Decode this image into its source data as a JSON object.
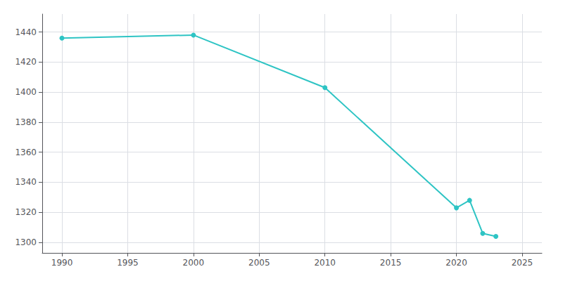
{
  "chart_data": {
    "type": "line",
    "x": [
      1990,
      2000,
      2010,
      2020,
      2021,
      2022,
      2023
    ],
    "values": [
      1436,
      1438,
      1403,
      1323,
      1328,
      1306,
      1304
    ],
    "color": "#2EC4C4",
    "marker": "o",
    "xlim": [
      1988.5,
      2026.5
    ],
    "ylim": [
      1293,
      1452
    ],
    "xticks": [
      1990,
      1995,
      2000,
      2005,
      2010,
      2015,
      2020,
      2025
    ],
    "yticks": [
      1300,
      1320,
      1340,
      1360,
      1380,
      1400,
      1420,
      1440
    ],
    "grid": true
  }
}
